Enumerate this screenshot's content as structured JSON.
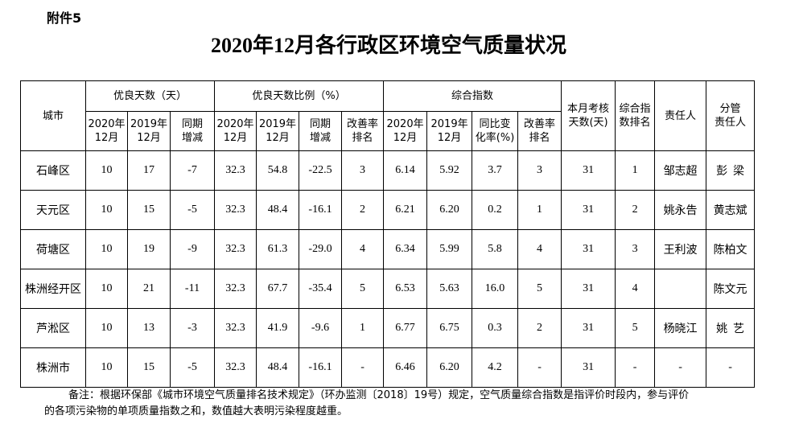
{
  "attachment": "附件5",
  "title": "2020年12月各行政区环境空气质量状况",
  "table": {
    "header": {
      "city": "城市",
      "good_days": "优良天数（天）",
      "good_ratio": "优良天数比例（%）",
      "index": "综合指数",
      "exam_days": [
        "本月考核",
        "天数(天)"
      ],
      "index_rank": [
        "综合指",
        "数排名"
      ],
      "person": "责任人",
      "supervisor": [
        "分管",
        "责任人"
      ],
      "sub": [
        [
          "2020年",
          "12月"
        ],
        [
          "2019年",
          "12月"
        ],
        [
          "同期",
          "增减"
        ],
        [
          "2020年",
          "12月"
        ],
        [
          "2019年",
          "12月"
        ],
        [
          "同期",
          "增减"
        ],
        [
          "改善率",
          "排名"
        ],
        [
          "2020年",
          "12月"
        ],
        [
          "2019年",
          "12月"
        ],
        [
          "同比变",
          "化率(%)"
        ],
        [
          "改善率",
          "排名"
        ]
      ]
    },
    "rows": [
      [
        "石峰区",
        "10",
        "17",
        "-7",
        "32.3",
        "54.8",
        "-22.5",
        "3",
        "6.14",
        "5.92",
        "3.7",
        "3",
        "31",
        "1",
        "邹志超",
        "彭  梁"
      ],
      [
        "天元区",
        "10",
        "15",
        "-5",
        "32.3",
        "48.4",
        "-16.1",
        "2",
        "6.21",
        "6.20",
        "0.2",
        "1",
        "31",
        "2",
        "姚永告",
        "黄志斌"
      ],
      [
        "荷塘区",
        "10",
        "19",
        "-9",
        "32.3",
        "61.3",
        "-29.0",
        "4",
        "6.34",
        "5.99",
        "5.8",
        "4",
        "31",
        "3",
        "王利波",
        "陈柏文"
      ],
      [
        "株洲经开区",
        "10",
        "21",
        "-11",
        "32.3",
        "67.7",
        "-35.4",
        "5",
        "6.53",
        "5.63",
        "16.0",
        "5",
        "31",
        "4",
        null,
        "陈文元"
      ],
      [
        "芦淞区",
        "10",
        "13",
        "-3",
        "32.3",
        "41.9",
        "-9.6",
        "1",
        "6.77",
        "6.75",
        "0.3",
        "2",
        "31",
        "5",
        "杨晓江",
        "姚  艺"
      ],
      [
        "株洲市",
        "10",
        "15",
        "-5",
        "32.3",
        "48.4",
        "-16.1",
        "-",
        "6.46",
        "6.20",
        "4.2",
        "-",
        "31",
        "-",
        "-",
        "-"
      ]
    ]
  },
  "note": [
    "备注：根据环保部《城市环境空气质量排名技术规定》（环办监测〔2018〕19号）规定，空气质量综合指数是指评价时段内，参与评价",
    "的各项污染物的单项质量指数之和，数值越大表明污染程度越重。"
  ]
}
